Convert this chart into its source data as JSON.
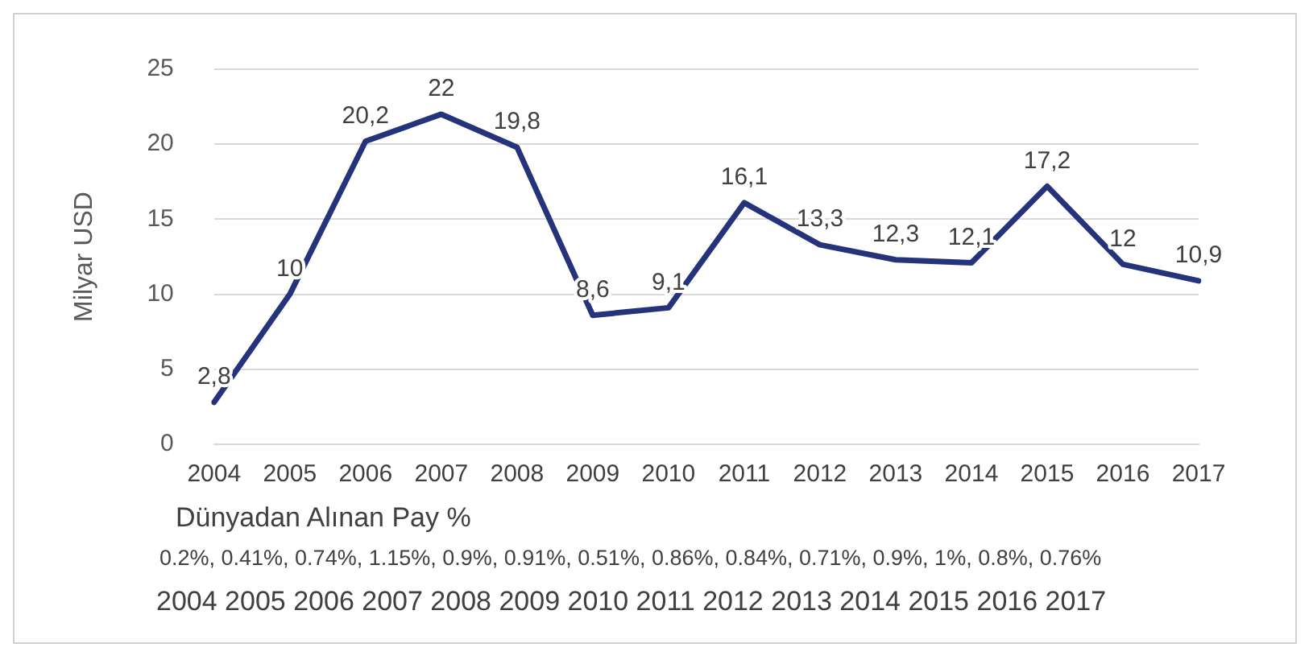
{
  "chart_data": {
    "type": "line",
    "ylabel": "Milyar USD",
    "categories": [
      "2004",
      "2005",
      "2006",
      "2007",
      "2008",
      "2009",
      "2010",
      "2011",
      "2012",
      "2013",
      "2014",
      "2015",
      "2016",
      "2017"
    ],
    "series": [
      {
        "color": "#25337a",
        "values": [
          2.8,
          10,
          20.2,
          22,
          19.8,
          8.6,
          9.1,
          16.1,
          13.3,
          12.3,
          12.1,
          17.2,
          12,
          10.9
        ],
        "value_labels": [
          "2,8",
          "10",
          "20,2",
          "22",
          "19,8",
          "8,6",
          "9,1",
          "16,1",
          "13,3",
          "12,3",
          "12,1",
          "17,2",
          "12",
          "10,9"
        ]
      }
    ],
    "ylim": [
      0,
      25
    ],
    "yticks": [
      0,
      5,
      10,
      15,
      20,
      25
    ],
    "grid": "y",
    "legend": false,
    "marker": "none",
    "line_style": "solid",
    "annotations": [
      "Dünyadan Alınan Pay %",
      "0.2%, 0.41%, 0.74%, 1.15%, 0.9%, 0.91%, 0.51%, 0.86%, 0.84%, 0.71%, 0.9%, 1%, 0.8%, 0.76%",
      "2004 2005 2006 2007 2008 2009 2010 2011 2012 2013 2014 2015 2016 2017"
    ]
  }
}
